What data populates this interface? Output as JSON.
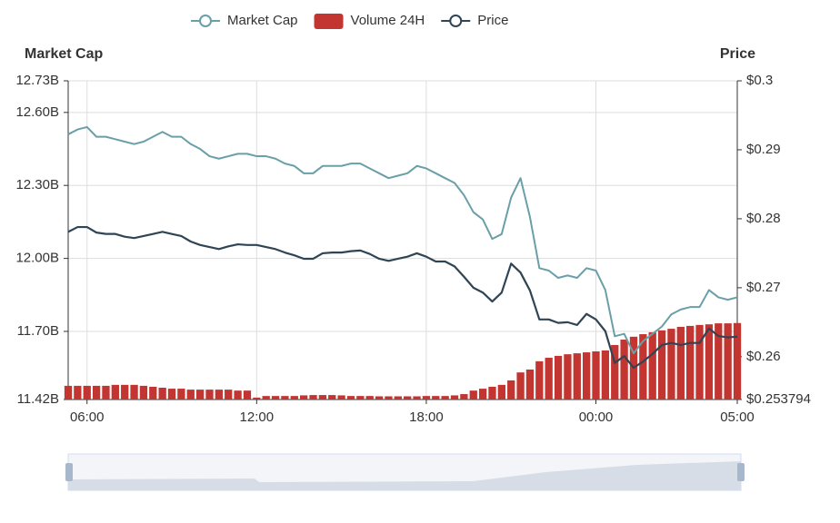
{
  "chart_data": {
    "type": "line-bar",
    "y_axis_label": "Market Cap",
    "y2_axis_label": "Price",
    "categories": [
      "05:20",
      "05:40",
      "06:00",
      "06:20",
      "06:40",
      "07:00",
      "07:20",
      "07:40",
      "08:00",
      "08:20",
      "08:40",
      "09:00",
      "09:20",
      "09:40",
      "10:00",
      "10:20",
      "10:40",
      "11:00",
      "11:20",
      "11:40",
      "12:00",
      "12:20",
      "12:40",
      "13:00",
      "13:20",
      "13:40",
      "14:00",
      "14:20",
      "14:40",
      "15:00",
      "15:20",
      "15:40",
      "16:00",
      "16:20",
      "16:40",
      "17:00",
      "17:20",
      "17:40",
      "18:00",
      "18:20",
      "18:40",
      "19:00",
      "19:20",
      "19:40",
      "20:00",
      "20:20",
      "20:40",
      "21:00",
      "21:20",
      "21:40",
      "22:00",
      "22:20",
      "22:40",
      "23:00",
      "23:20",
      "23:40",
      "00:00",
      "00:20",
      "00:40",
      "01:00",
      "01:20",
      "01:40",
      "02:00",
      "02:20",
      "02:40",
      "03:00",
      "03:20",
      "03:40",
      "04:00",
      "04:20",
      "04:40",
      "05:00"
    ],
    "xticks": [
      "06:00",
      "12:00",
      "18:00",
      "00:00",
      "05:00"
    ],
    "series": [
      {
        "name": "Market Cap",
        "color": "#6a9fa8",
        "axis": "y",
        "values": [
          12.51,
          12.53,
          12.54,
          12.5,
          12.5,
          12.49,
          12.48,
          12.47,
          12.48,
          12.5,
          12.52,
          12.5,
          12.5,
          12.47,
          12.45,
          12.42,
          12.41,
          12.42,
          12.43,
          12.43,
          12.42,
          12.42,
          12.41,
          12.39,
          12.38,
          12.35,
          12.35,
          12.38,
          12.38,
          12.38,
          12.39,
          12.39,
          12.37,
          12.35,
          12.33,
          12.34,
          12.35,
          12.38,
          12.37,
          12.35,
          12.33,
          12.31,
          12.26,
          12.19,
          12.16,
          12.08,
          12.1,
          12.25,
          12.33,
          12.17,
          11.96,
          11.95,
          11.92,
          11.93,
          11.92,
          11.96,
          11.95,
          11.87,
          11.68,
          11.69,
          11.61,
          11.66,
          11.69,
          11.72,
          11.77,
          11.79,
          11.8,
          11.8,
          11.87,
          11.84,
          11.83,
          11.84
        ]
      },
      {
        "name": "Volume 24H",
        "color": "#c23531",
        "axis": "y3",
        "values": [
          4.3,
          4.3,
          4.3,
          4.3,
          4.3,
          4.6,
          4.6,
          4.6,
          4.3,
          4.0,
          3.7,
          3.4,
          3.4,
          3.1,
          3.1,
          3.1,
          3.1,
          3.1,
          2.8,
          2.8,
          0.6,
          1.1,
          1.1,
          1.1,
          1.1,
          1.3,
          1.4,
          1.4,
          1.4,
          1.3,
          1.1,
          1.1,
          1.1,
          1.0,
          1.0,
          1.0,
          1.0,
          1.0,
          1.1,
          1.1,
          1.1,
          1.3,
          1.7,
          2.8,
          3.4,
          4.0,
          4.6,
          6.0,
          8.5,
          9.4,
          12.0,
          13.1,
          13.7,
          14.2,
          14.5,
          14.8,
          15.1,
          15.4,
          17.1,
          18.8,
          19.7,
          20.5,
          21.1,
          21.7,
          22.2,
          22.8,
          23.1,
          23.4,
          23.6,
          23.9,
          23.9,
          24.0
        ]
      },
      {
        "name": "Price",
        "color": "#2f4554",
        "axis": "y2",
        "values": [
          0.2781,
          0.2788,
          0.2788,
          0.278,
          0.2778,
          0.2778,
          0.2774,
          0.2772,
          0.2775,
          0.2778,
          0.2781,
          0.2778,
          0.2775,
          0.2767,
          0.2762,
          0.2759,
          0.2756,
          0.276,
          0.2763,
          0.2762,
          0.2762,
          0.2759,
          0.2756,
          0.2751,
          0.2747,
          0.2742,
          0.2742,
          0.275,
          0.2751,
          0.2751,
          0.2753,
          0.2754,
          0.2749,
          0.2742,
          0.2739,
          0.2742,
          0.2745,
          0.275,
          0.2745,
          0.2738,
          0.2738,
          0.2731,
          0.2716,
          0.27,
          0.2693,
          0.268,
          0.2693,
          0.2735,
          0.2722,
          0.2696,
          0.2654,
          0.2654,
          0.2649,
          0.265,
          0.2646,
          0.2662,
          0.2654,
          0.2637,
          0.2591,
          0.2601,
          0.2584,
          0.2593,
          0.2604,
          0.2617,
          0.262,
          0.2617,
          0.262,
          0.262,
          0.2641,
          0.263,
          0.2628,
          0.2629
        ]
      }
    ],
    "ylim": [
      11.42,
      12.73
    ],
    "yticks": [
      {
        "value": 11.42,
        "label": "11.42B"
      },
      {
        "value": 11.7,
        "label": "11.70B"
      },
      {
        "value": 12.0,
        "label": "12.00B"
      },
      {
        "value": 12.3,
        "label": "12.30B"
      },
      {
        "value": 12.6,
        "label": "12.60B"
      },
      {
        "value": 12.73,
        "label": "12.73B"
      }
    ],
    "y2lim": [
      0.253794,
      0.3
    ],
    "y2ticks": [
      {
        "value": 0.253794,
        "label": "$0.253794"
      },
      {
        "value": 0.26,
        "label": "$0.26"
      },
      {
        "value": 0.27,
        "label": "$0.27"
      },
      {
        "value": 0.28,
        "label": "$0.28"
      },
      {
        "value": 0.29,
        "label": "$0.29"
      },
      {
        "value": 0.3,
        "label": "$0.3"
      }
    ],
    "y3lim": [
      0,
      100
    ],
    "grid": true,
    "legend": "top"
  }
}
